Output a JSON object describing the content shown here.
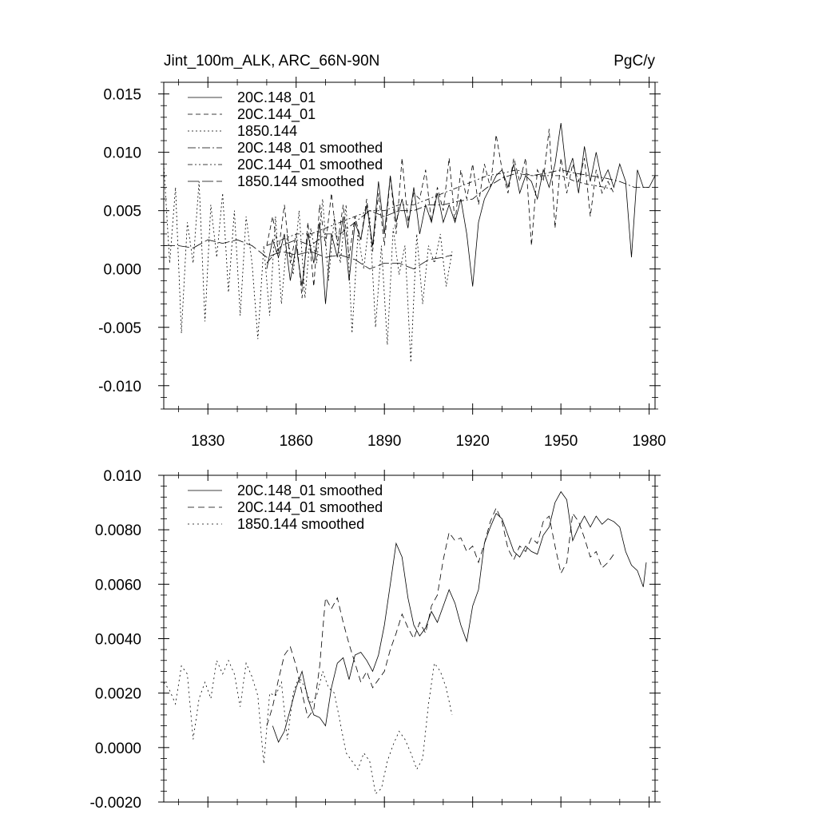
{
  "chart_data": [
    {
      "type": "line",
      "title_left": "Jint_100m_ALK, ARC_66N-90N",
      "title_right": "PgC/y",
      "xlabel": "",
      "ylabel": "",
      "xlim": [
        1815,
        1982
      ],
      "ylim": [
        -0.012,
        0.016
      ],
      "xticks": [
        1830,
        1860,
        1890,
        1920,
        1950,
        1980
      ],
      "xtick_labels": [
        "1830",
        "1860",
        "1890",
        "1920",
        "1950",
        "1980"
      ],
      "yticks": [
        -0.01,
        -0.005,
        0.0,
        0.005,
        0.01,
        0.015
      ],
      "ytick_labels": [
        "-0.010",
        "-0.005",
        "0.000",
        "0.005",
        "0.010",
        "0.015"
      ],
      "legend_location": "top-left",
      "grid": false,
      "series": [
        {
          "name": "20C.148_01",
          "dash": "solid",
          "x": [
            1850,
            1852,
            1854,
            1856,
            1858,
            1860,
            1862,
            1864,
            1866,
            1868,
            1870,
            1872,
            1874,
            1876,
            1878,
            1880,
            1882,
            1884,
            1886,
            1888,
            1890,
            1892,
            1894,
            1896,
            1898,
            1900,
            1902,
            1904,
            1906,
            1908,
            1910,
            1912,
            1914,
            1916,
            1918,
            1920,
            1922,
            1924,
            1926,
            1928,
            1930,
            1932,
            1934,
            1936,
            1938,
            1940,
            1942,
            1944,
            1946,
            1948,
            1950,
            1952,
            1954,
            1956,
            1958,
            1960,
            1962,
            1964,
            1966,
            1968,
            1970,
            1972,
            1974,
            1976,
            1978,
            1980,
            1982
          ],
          "values": [
            0.0,
            0.0025,
            0.001,
            0.003,
            -0.001,
            0.002,
            -0.0015,
            0.003,
            0.0005,
            0.004,
            -0.003,
            0.003,
            0.001,
            0.0045,
            -0.001,
            0.004,
            0.0025,
            0.0055,
            0.002,
            0.0075,
            0.003,
            0.008,
            0.004,
            0.006,
            0.0035,
            0.007,
            0.003,
            0.0055,
            0.004,
            0.0065,
            0.004,
            0.0055,
            0.004,
            0.006,
            0.003,
            -0.0015,
            0.004,
            0.006,
            0.007,
            0.008,
            0.0085,
            0.007,
            0.009,
            0.0065,
            0.008,
            0.0075,
            0.006,
            0.0085,
            0.007,
            0.009,
            0.0125,
            0.008,
            0.0095,
            0.0065,
            0.0105,
            0.0075,
            0.01,
            0.0075,
            0.0085,
            0.007,
            0.009,
            0.0075,
            0.001,
            0.0085,
            0.007,
            0.007,
            0.008
          ]
        },
        {
          "name": "20C.144_01",
          "dash": "6,4",
          "x": [
            1850,
            1852,
            1854,
            1856,
            1858,
            1860,
            1862,
            1864,
            1866,
            1868,
            1870,
            1872,
            1874,
            1876,
            1878,
            1880,
            1882,
            1884,
            1886,
            1888,
            1890,
            1892,
            1894,
            1896,
            1898,
            1900,
            1902,
            1904,
            1906,
            1908,
            1910,
            1912,
            1914,
            1916,
            1918,
            1920,
            1922,
            1924,
            1926,
            1928,
            1930,
            1932,
            1934,
            1936,
            1938,
            1940,
            1942,
            1944,
            1946,
            1948,
            1950,
            1952,
            1954,
            1956,
            1958,
            1960,
            1962,
            1964,
            1966,
            1968
          ],
          "values": [
            0.002,
            0.0045,
            0.0015,
            0.0055,
            0.0005,
            0.003,
            -0.0025,
            0.004,
            -0.0015,
            0.0055,
            0.002,
            0.0065,
            0.002,
            0.0055,
            0.001,
            0.0045,
            0.0025,
            0.006,
            0.0015,
            0.0065,
            0.002,
            0.008,
            0.003,
            0.0095,
            0.004,
            0.0065,
            0.006,
            0.0085,
            0.004,
            0.007,
            0.005,
            0.0095,
            0.004,
            0.0085,
            0.006,
            0.009,
            0.0055,
            0.009,
            0.007,
            0.0115,
            0.0085,
            0.0065,
            0.0095,
            0.0075,
            0.0095,
            0.002,
            0.0085,
            0.0075,
            0.012,
            0.0035,
            0.0095,
            0.0065,
            0.009,
            0.0075,
            0.0095,
            0.0045,
            0.0085,
            0.0065,
            0.0075,
            0.0065
          ]
        },
        {
          "name": "1850.144",
          "dash": "2,3",
          "x": [
            1815,
            1817,
            1819,
            1821,
            1823,
            1825,
            1827,
            1829,
            1831,
            1833,
            1835,
            1837,
            1839,
            1841,
            1843,
            1845,
            1847,
            1849,
            1851,
            1853,
            1855,
            1857,
            1859,
            1861,
            1863,
            1865,
            1867,
            1869,
            1871,
            1873,
            1875,
            1877,
            1879,
            1881,
            1883,
            1885,
            1887,
            1889,
            1891,
            1893,
            1895,
            1897,
            1899,
            1901,
            1903,
            1905,
            1907,
            1909,
            1911,
            1913
          ],
          "values": [
            0.009,
            0.0005,
            0.007,
            -0.0055,
            0.004,
            0.0005,
            0.0075,
            -0.0045,
            0.0055,
            0.001,
            0.0065,
            -0.002,
            0.005,
            -0.004,
            0.0045,
            0.0005,
            -0.006,
            0.002,
            -0.004,
            0.0045,
            -0.003,
            0.003,
            -0.0005,
            0.005,
            -0.0025,
            0.0035,
            0.0005,
            0.006,
            -0.001,
            0.0045,
            0.0005,
            0.0055,
            -0.0055,
            0.003,
            0.0,
            0.0045,
            -0.005,
            0.002,
            -0.0065,
            0.0035,
            -0.0005,
            0.002,
            -0.008,
            0.003,
            -0.003,
            0.002,
            0.0005,
            0.003,
            -0.0015,
            0.0015
          ]
        },
        {
          "name": "20C.148_01 smoothed",
          "dash": "10,3,2,3",
          "x": [
            1850,
            1855,
            1860,
            1865,
            1870,
            1875,
            1880,
            1885,
            1890,
            1895,
            1900,
            1905,
            1910,
            1915,
            1920,
            1925,
            1930,
            1935,
            1940,
            1945,
            1950,
            1955,
            1960,
            1965,
            1970,
            1975,
            1980
          ],
          "values": [
            0.0005,
            0.002,
            0.0025,
            0.002,
            0.003,
            0.003,
            0.004,
            0.005,
            0.0045,
            0.005,
            0.005,
            0.0055,
            0.0055,
            0.0058,
            0.006,
            0.007,
            0.0078,
            0.0082,
            0.008,
            0.0082,
            0.0085,
            0.0082,
            0.008,
            0.0078,
            0.0075,
            0.007,
            0.007
          ]
        },
        {
          "name": "20C.144_01 smoothed",
          "dash": "6,3,2,3,2,3",
          "x": [
            1850,
            1855,
            1860,
            1865,
            1870,
            1875,
            1880,
            1885,
            1890,
            1895,
            1900,
            1905,
            1910,
            1915,
            1920,
            1925,
            1930,
            1935,
            1940,
            1945,
            1950,
            1955,
            1960,
            1965,
            1968
          ],
          "values": [
            0.002,
            0.0025,
            0.003,
            0.003,
            0.0035,
            0.004,
            0.0045,
            0.005,
            0.005,
            0.0055,
            0.0055,
            0.006,
            0.0065,
            0.007,
            0.0075,
            0.008,
            0.0082,
            0.0085,
            0.008,
            0.008,
            0.008,
            0.0075,
            0.0072,
            0.007,
            0.0068
          ]
        },
        {
          "name": "1850.144 smoothed",
          "dash": "14,4",
          "x": [
            1815,
            1820,
            1825,
            1830,
            1835,
            1840,
            1845,
            1850,
            1855,
            1860,
            1865,
            1870,
            1875,
            1880,
            1885,
            1890,
            1895,
            1900,
            1905,
            1910,
            1913
          ],
          "values": [
            0.002,
            0.002,
            0.0018,
            0.0025,
            0.0022,
            0.0025,
            0.002,
            0.001,
            0.0015,
            0.0012,
            0.0015,
            0.001,
            0.0012,
            0.0008,
            0.0,
            0.0005,
            0.0005,
            0.0,
            0.0008,
            0.001,
            0.0012
          ]
        }
      ]
    },
    {
      "type": "line",
      "xlabel": "",
      "ylabel": "",
      "xlim": [
        1815,
        1982
      ],
      "ylim": [
        -0.002,
        0.01
      ],
      "xticks": [
        1830,
        1860,
        1890,
        1920,
        1950,
        1980
      ],
      "yticks": [
        -0.002,
        0.0,
        0.002,
        0.004,
        0.006,
        0.008,
        0.01
      ],
      "ytick_labels": [
        "-0.0020",
        "0.0000",
        "0.0020",
        "0.0040",
        "0.0060",
        "0.0080",
        "0.010"
      ],
      "legend_location": "top-left",
      "grid": false,
      "series": [
        {
          "name": "20C.148_01 smoothed",
          "dash": "solid",
          "x": [
            1852,
            1854,
            1856,
            1858,
            1860,
            1862,
            1864,
            1866,
            1868,
            1870,
            1872,
            1874,
            1876,
            1878,
            1880,
            1882,
            1884,
            1886,
            1888,
            1890,
            1892,
            1894,
            1896,
            1898,
            1900,
            1902,
            1904,
            1906,
            1908,
            1910,
            1912,
            1914,
            1916,
            1918,
            1920,
            1922,
            1924,
            1926,
            1928,
            1930,
            1932,
            1934,
            1936,
            1938,
            1940,
            1942,
            1944,
            1946,
            1948,
            1950,
            1952,
            1954,
            1956,
            1958,
            1960,
            1962,
            1964,
            1966,
            1968,
            1970,
            1972,
            1974,
            1976,
            1978,
            1979
          ],
          "values": [
            0.0008,
            0.0002,
            0.0006,
            0.0014,
            0.0022,
            0.0028,
            0.0018,
            0.0012,
            0.0011,
            0.0008,
            0.0022,
            0.0031,
            0.0033,
            0.0025,
            0.0034,
            0.0035,
            0.0032,
            0.0028,
            0.0034,
            0.0045,
            0.006,
            0.0075,
            0.007,
            0.0055,
            0.0045,
            0.0041,
            0.0044,
            0.005,
            0.0046,
            0.0052,
            0.0058,
            0.0053,
            0.0045,
            0.0039,
            0.0052,
            0.0058,
            0.0075,
            0.0081,
            0.0086,
            0.0084,
            0.0078,
            0.0072,
            0.007,
            0.0074,
            0.0072,
            0.0071,
            0.0078,
            0.0081,
            0.009,
            0.0094,
            0.0091,
            0.0076,
            0.0081,
            0.0085,
            0.0081,
            0.0085,
            0.0082,
            0.0084,
            0.0083,
            0.0081,
            0.0072,
            0.0067,
            0.0065,
            0.0059,
            0.0068
          ]
        },
        {
          "name": "20C.144_01 smoothed",
          "dash": "8,5",
          "x": [
            1850,
            1852,
            1854,
            1856,
            1858,
            1860,
            1862,
            1864,
            1866,
            1868,
            1870,
            1872,
            1874,
            1876,
            1878,
            1880,
            1882,
            1884,
            1886,
            1888,
            1890,
            1892,
            1894,
            1896,
            1898,
            1900,
            1902,
            1904,
            1906,
            1908,
            1910,
            1912,
            1914,
            1916,
            1918,
            1920,
            1922,
            1924,
            1926,
            1928,
            1930,
            1932,
            1934,
            1936,
            1938,
            1940,
            1942,
            1944,
            1946,
            1948,
            1950,
            1952,
            1954,
            1956,
            1958,
            1960,
            1962,
            1964,
            1966,
            1968
          ],
          "values": [
            0.0008,
            0.0015,
            0.0025,
            0.0034,
            0.0037,
            0.003,
            0.002,
            0.0011,
            0.0014,
            0.003,
            0.0055,
            0.0051,
            0.0055,
            0.0046,
            0.0038,
            0.0031,
            0.0024,
            0.0028,
            0.0022,
            0.0025,
            0.0028,
            0.0036,
            0.0042,
            0.0049,
            0.0044,
            0.004,
            0.0046,
            0.0042,
            0.0052,
            0.0056,
            0.0069,
            0.0079,
            0.0076,
            0.0077,
            0.0072,
            0.0074,
            0.0068,
            0.0075,
            0.0083,
            0.0088,
            0.0083,
            0.0073,
            0.0069,
            0.0074,
            0.0072,
            0.0077,
            0.0075,
            0.0083,
            0.0085,
            0.0074,
            0.0064,
            0.0068,
            0.0086,
            0.0083,
            0.0077,
            0.007,
            0.0072,
            0.0066,
            0.0068,
            0.0071
          ]
        },
        {
          "name": "1850.144 smoothed",
          "dash": "2,4",
          "x": [
            1815,
            1817,
            1819,
            1821,
            1823,
            1825,
            1827,
            1829,
            1831,
            1833,
            1835,
            1837,
            1839,
            1841,
            1843,
            1845,
            1847,
            1849,
            1851,
            1853,
            1855,
            1857,
            1859,
            1861,
            1863,
            1865,
            1867,
            1869,
            1871,
            1873,
            1875,
            1877,
            1879,
            1881,
            1883,
            1885,
            1887,
            1889,
            1891,
            1893,
            1895,
            1897,
            1899,
            1901,
            1903,
            1905,
            1907,
            1909,
            1911,
            1913
          ],
          "values": [
            0.0024,
            0.0021,
            0.0016,
            0.003,
            0.0027,
            0.0003,
            0.0018,
            0.0024,
            0.0018,
            0.0032,
            0.0027,
            0.0032,
            0.0027,
            0.0015,
            0.0031,
            0.0026,
            0.0019,
            -0.0006,
            0.002,
            0.0019,
            0.0024,
            0.0003,
            0.002,
            0.0026,
            0.0022,
            0.0016,
            0.0019,
            0.0028,
            0.0022,
            0.002,
            0.0009,
            -0.0002,
            -0.0005,
            -0.0008,
            -0.0002,
            -0.0005,
            -0.0017,
            -0.0015,
            -0.0005,
            0.0001,
            0.0006,
            0.0003,
            -0.0002,
            -0.0008,
            -0.0004,
            0.0016,
            0.0031,
            0.0028,
            0.0022,
            0.0012
          ]
        }
      ]
    }
  ]
}
